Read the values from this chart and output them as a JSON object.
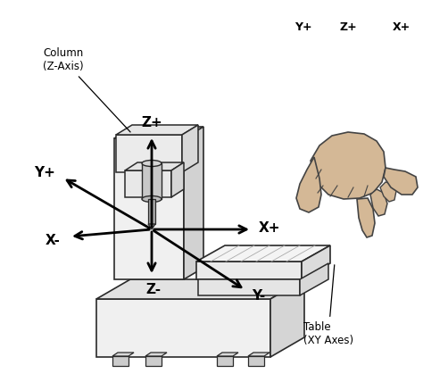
{
  "bg_color": "#ffffff",
  "line_color": "#1a1a1a",
  "machine_color": "#f0f0f0",
  "machine_edge": "#2a2a2a",
  "hand_color": "#d4b896",
  "hand_edge": "#444444",
  "axis_color": "#000000",
  "arrow_lw": 2.0,
  "labels": {
    "column": "Column\n(Z-Axis)",
    "table": "Table\n(XY Axes)",
    "xplus": "X+",
    "xminus": "X-",
    "yplus": "Y+",
    "yminus": "Y-",
    "zplus": "Z+",
    "zminus": "Z-",
    "hand_xplus": "X+",
    "hand_yplus": "Y+",
    "hand_zplus": "Z+"
  },
  "figsize": [
    4.74,
    4.28
  ],
  "dpi": 100
}
